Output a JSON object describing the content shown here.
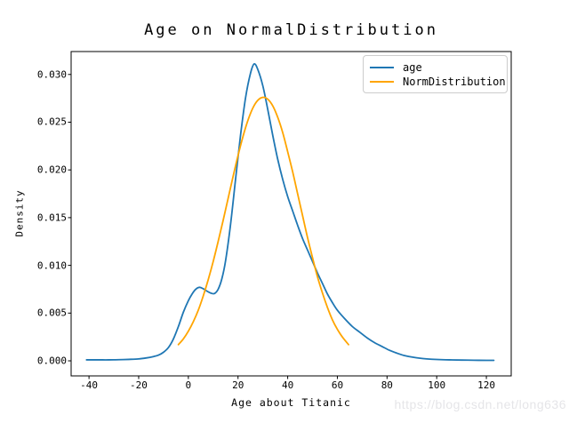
{
  "chart": {
    "title": "Age on NormalDistribution",
    "xlabel": "Age about Titanic",
    "ylabel": "Density"
  },
  "legend": {
    "position": "upper right",
    "items": [
      {
        "label": "age",
        "color": "#1f77b4"
      },
      {
        "label": "NormDistribution",
        "color": "#ffa500"
      }
    ]
  },
  "watermark": "https://blog.csdn.net/long636",
  "colors": {
    "age_line": "#1f77b4",
    "norm_line": "#ffa500",
    "spine": "#000000",
    "background": "#ffffff",
    "legend_border": "#cccccc",
    "watermark": "#e5e5e8"
  },
  "chart_data": {
    "type": "line",
    "title": "Age on NormalDistribution",
    "xlabel": "Age about Titanic",
    "ylabel": "Density",
    "xlim": [
      -47.2,
      130.0
    ],
    "ylim": [
      -0.00158,
      0.0324
    ],
    "x_ticks": [
      -40,
      -20,
      0,
      20,
      40,
      60,
      80,
      100,
      120
    ],
    "x_tick_labels": [
      "-40",
      "-20",
      "0",
      "20",
      "40",
      "60",
      "80",
      "100",
      "120"
    ],
    "y_ticks": [
      0.0,
      0.005,
      0.01,
      0.015,
      0.02,
      0.025,
      0.03
    ],
    "y_tick_labels": [
      "0.000",
      "0.005",
      "0.010",
      "0.015",
      "0.020",
      "0.025",
      "0.030"
    ],
    "grid": false,
    "legend_position": "upper right",
    "series": [
      {
        "name": "age",
        "color": "#1f77b4",
        "points": [
          [
            -41,
            0.0001
          ],
          [
            -36,
            0.0001
          ],
          [
            -32,
            0.0001
          ],
          [
            -28,
            0.00012
          ],
          [
            -24,
            0.00015
          ],
          [
            -20,
            0.0002
          ],
          [
            -17,
            0.0003
          ],
          [
            -14,
            0.00045
          ],
          [
            -12,
            0.0006
          ],
          [
            -10,
            0.0009
          ],
          [
            -8,
            0.0014
          ],
          [
            -6,
            0.0023
          ],
          [
            -4,
            0.0036
          ],
          [
            -2,
            0.0051
          ],
          [
            0,
            0.0063
          ],
          [
            1.5,
            0.007
          ],
          [
            3,
            0.0075
          ],
          [
            4.5,
            0.0077
          ],
          [
            6,
            0.00755
          ],
          [
            7.5,
            0.0073
          ],
          [
            9,
            0.0071
          ],
          [
            10.5,
            0.00705
          ],
          [
            12,
            0.0075
          ],
          [
            13.5,
            0.0086
          ],
          [
            15,
            0.0105
          ],
          [
            17,
            0.0143
          ],
          [
            19,
            0.019
          ],
          [
            21,
            0.0236
          ],
          [
            23,
            0.0275
          ],
          [
            25,
            0.0301
          ],
          [
            26.5,
            0.0311
          ],
          [
            28,
            0.0305
          ],
          [
            30,
            0.0288
          ],
          [
            32,
            0.0263
          ],
          [
            34,
            0.0236
          ],
          [
            36,
            0.0211
          ],
          [
            38,
            0.019
          ],
          [
            40,
            0.0172
          ],
          [
            42,
            0.0157
          ],
          [
            44,
            0.0142
          ],
          [
            46,
            0.0128
          ],
          [
            48,
            0.0116
          ],
          [
            50,
            0.0104
          ],
          [
            52,
            0.0092
          ],
          [
            54,
            0.0081
          ],
          [
            56,
            0.007
          ],
          [
            58,
            0.0061
          ],
          [
            60,
            0.0053
          ],
          [
            63,
            0.0044
          ],
          [
            66,
            0.0036
          ],
          [
            69,
            0.003
          ],
          [
            72,
            0.0024
          ],
          [
            75,
            0.0019
          ],
          [
            78,
            0.0015
          ],
          [
            81,
            0.0011
          ],
          [
            84,
            0.0008
          ],
          [
            87,
            0.00055
          ],
          [
            90,
            0.0004
          ],
          [
            93,
            0.00028
          ],
          [
            96,
            0.0002
          ],
          [
            100,
            0.00014
          ],
          [
            105,
            0.0001
          ],
          [
            110,
            8e-05
          ],
          [
            115,
            6e-05
          ],
          [
            120,
            5e-05
          ],
          [
            123,
            5e-05
          ]
        ]
      },
      {
        "name": "NormDistribution",
        "color": "#ffa500",
        "points": [
          [
            -4,
            0.0017
          ],
          [
            -2,
            0.0023
          ],
          [
            0,
            0.0031
          ],
          [
            2,
            0.0041
          ],
          [
            4,
            0.0053
          ],
          [
            6,
            0.0068
          ],
          [
            8,
            0.0085
          ],
          [
            10,
            0.0104
          ],
          [
            12,
            0.0125
          ],
          [
            14,
            0.0147
          ],
          [
            16,
            0.017
          ],
          [
            18,
            0.0193
          ],
          [
            20,
            0.0215
          ],
          [
            22,
            0.0235
          ],
          [
            24,
            0.0252
          ],
          [
            26,
            0.0265
          ],
          [
            28,
            0.0273
          ],
          [
            30,
            0.0276
          ],
          [
            32,
            0.0274
          ],
          [
            34,
            0.0267
          ],
          [
            36,
            0.0255
          ],
          [
            38,
            0.0239
          ],
          [
            40,
            0.0219
          ],
          [
            42,
            0.0198
          ],
          [
            44,
            0.0175
          ],
          [
            46,
            0.0152
          ],
          [
            48,
            0.0129
          ],
          [
            50,
            0.0108
          ],
          [
            52,
            0.0088
          ],
          [
            54,
            0.0071
          ],
          [
            56,
            0.0056
          ],
          [
            58,
            0.0043
          ],
          [
            60,
            0.0033
          ],
          [
            62,
            0.0025
          ],
          [
            64.5,
            0.0017
          ]
        ]
      }
    ]
  }
}
